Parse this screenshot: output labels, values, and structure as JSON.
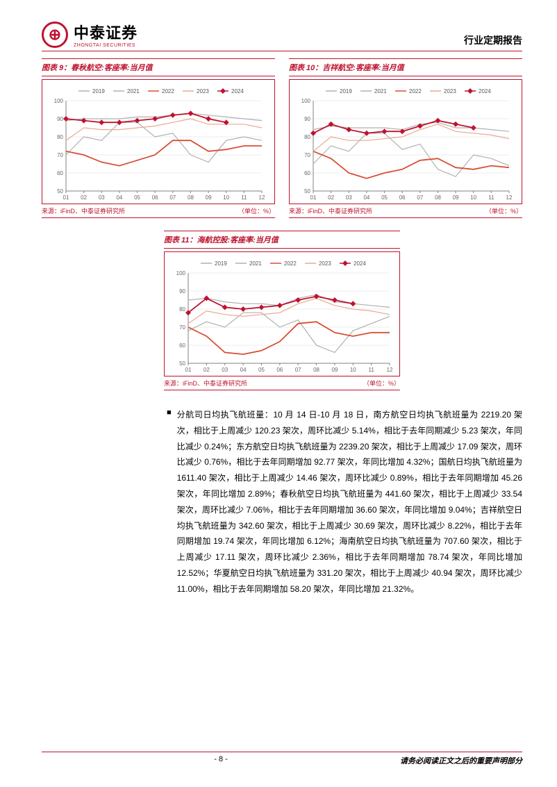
{
  "header": {
    "logo_glyph": "⊕",
    "logo_cn": "中泰证券",
    "logo_en": "ZHONGTAI SECURITIES",
    "doc_type": "行业定期报告"
  },
  "legend": {
    "series": [
      "2019",
      "2021",
      "2022",
      "2023",
      "2024"
    ],
    "colors": {
      "2019": "#b0b0b0",
      "2021": "#b0b0b0",
      "2022": "#d94e33",
      "2023": "#e8a98f",
      "2024": "#be122e"
    },
    "marker_2024": "diamond"
  },
  "axis_common": {
    "y_ticks": [
      50,
      60,
      70,
      80,
      90,
      100
    ],
    "x_ticks": [
      "01",
      "02",
      "03",
      "04",
      "05",
      "06",
      "07",
      "08",
      "09",
      "10",
      "11",
      "12"
    ],
    "ylim": [
      50,
      100
    ],
    "grid_color": "#d9d9d9",
    "axis_color": "#808080",
    "tick_fontsize": 8,
    "legend_fontsize": 8
  },
  "chart9": {
    "title": "图表 9：春秋航空:客座率:当月值",
    "source": "来源：iFinD、中泰证券研究所",
    "unit": "（单位：%）",
    "type": "line",
    "data": {
      "2019": [
        89,
        90,
        90,
        90,
        91,
        91,
        92,
        93,
        92,
        91,
        90,
        89
      ],
      "2021": [
        70,
        80,
        78,
        88,
        88,
        80,
        82,
        70,
        66,
        78,
        80,
        78
      ],
      "2022": [
        72,
        70,
        66,
        64,
        67,
        70,
        78,
        78,
        72,
        73,
        75,
        75
      ],
      "2023": [
        78,
        85,
        84,
        84,
        85,
        86,
        88,
        90,
        87,
        87,
        87,
        85
      ],
      "2024": [
        90,
        89,
        88,
        88,
        89,
        90,
        92,
        93,
        90,
        88
      ]
    }
  },
  "chart10": {
    "title": "图表 10：吉祥航空:客座率:当月值",
    "source": "来源：iFinD、中泰证券研究所",
    "unit": "（单位：%）",
    "type": "line",
    "data": {
      "2019": [
        84,
        86,
        85,
        85,
        85,
        84,
        87,
        88,
        85,
        85,
        84,
        83
      ],
      "2021": [
        65,
        75,
        72,
        82,
        82,
        73,
        76,
        62,
        58,
        70,
        68,
        64
      ],
      "2022": [
        72,
        68,
        60,
        57,
        60,
        62,
        67,
        68,
        63,
        62,
        64,
        63
      ],
      "2023": [
        72,
        80,
        78,
        78,
        79,
        80,
        84,
        87,
        83,
        82,
        81,
        79
      ],
      "2024": [
        82,
        87,
        84,
        82,
        83,
        83,
        86,
        89,
        87,
        85
      ]
    }
  },
  "chart11": {
    "title": "图表 11：海航控股:客座率:当月值",
    "source": "来源：iFinD、中泰证券研究所",
    "unit": "（单位：%）",
    "type": "line",
    "data": {
      "2019": [
        85,
        86,
        84,
        83,
        83,
        82,
        86,
        88,
        84,
        83,
        82,
        81
      ],
      "2021": [
        68,
        73,
        70,
        78,
        78,
        70,
        74,
        60,
        56,
        68,
        72,
        76
      ],
      "2022": [
        70,
        65,
        56,
        55,
        57,
        62,
        72,
        73,
        67,
        65,
        67,
        67
      ],
      "2023": [
        72,
        79,
        77,
        76,
        77,
        78,
        83,
        86,
        82,
        80,
        79,
        77
      ],
      "2024": [
        78,
        86,
        81,
        80,
        81,
        82,
        85,
        87,
        85,
        83
      ]
    }
  },
  "paragraph": {
    "bullet": "■",
    "text": "分航司日均执飞航班量：10 月 14 日-10 月 18 日，南方航空日均执飞航班量为 2219.20 架次，相比于上周减少 120.23 架次，周环比减少 5.14%，相比于去年同期减少 5.23 架次，年同比减少 0.24%；东方航空日均执飞航班量为 2239.20 架次，相比于上周减少 17.09 架次，周环比减少 0.76%，相比于去年同期增加 92.77 架次，年同比增加 4.32%；国航日均执飞航班量为 1611.40 架次，相比于上周减少 14.46 架次，周环比减少 0.89%，相比于去年同期增加 45.26 架次，年同比增加 2.89%；春秋航空日均执飞航班量为 441.60 架次，相比于上周减少 33.54 架次，周环比减少 7.06%，相比于去年同期增加 36.60 架次，年同比增加 9.04%；吉祥航空日均执飞航班量为 342.60 架次，相比于上周减少 30.69 架次，周环比减少 8.22%，相比于去年同期增加 19.74 架次，年同比增加 6.12%；海南航空日均执飞航班量为 707.60 架次，相比于上周减少 17.11 架次，周环比减少 2.36%，相比于去年同期增加 78.74 架次，年同比增加 12.52%；华夏航空日均执飞航班量为 331.20 架次，相比于上周减少 40.94 架次，周环比减少 11.00%，相比于去年同期增加 58.20 架次，年同比增加 21.32%。"
  },
  "footer": {
    "page": "- 8 -",
    "note": "请务必阅读正文之后的重要声明部分"
  }
}
